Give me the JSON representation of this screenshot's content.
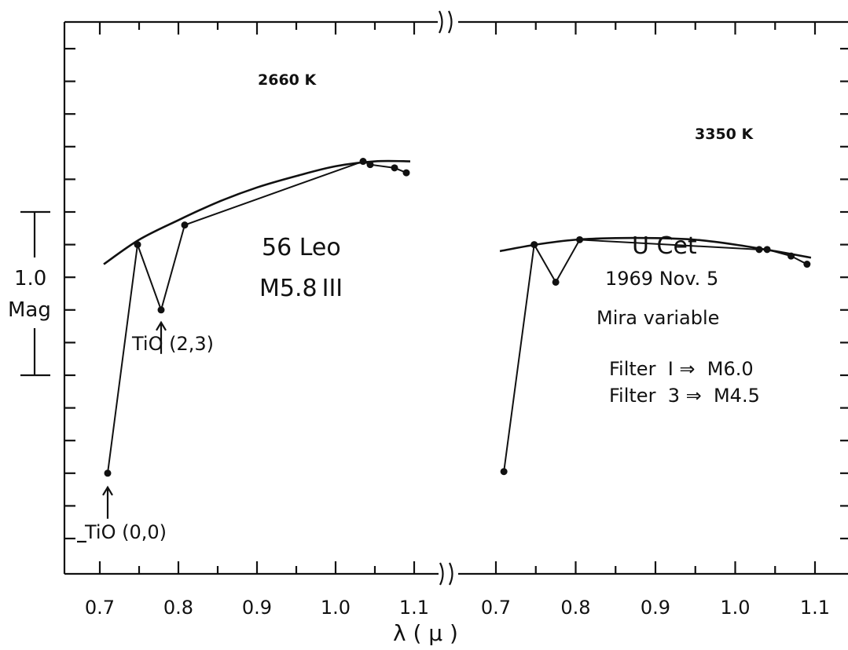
{
  "chart_data": [
    {
      "type": "line",
      "panel": "left",
      "x_tick_labels": [
        "0.7",
        "0.8",
        "0.9",
        "1.0",
        "1.1"
      ],
      "xlim": [
        0.655,
        1.115
      ],
      "y_unit": "mag",
      "ylim": [
        -0.6,
        3.4
      ],
      "series": [
        {
          "kind": "observed",
          "x": [
            0.71,
            0.748,
            0.778,
            0.808,
            1.035,
            1.044,
            1.075,
            1.09
          ],
          "y": [
            2.0,
            0.6,
            1.0,
            0.48,
            0.09,
            0.11,
            0.13,
            0.16
          ]
        },
        {
          "kind": "blackbody",
          "x": [
            0.705,
            0.75,
            0.8,
            0.85,
            0.9,
            0.95,
            1.0,
            1.05,
            1.095
          ],
          "y": [
            0.72,
            0.57,
            0.45,
            0.34,
            0.25,
            0.18,
            0.12,
            0.09,
            0.09
          ]
        }
      ],
      "annotations": {
        "blackbody_label": "2660 K",
        "star_name": "56 Leo",
        "spectral_type": "M5.8",
        "luminosity_class": "III",
        "arrow_lower": "TiO (0,0)",
        "arrow_upper": "TiO (2,3)"
      }
    },
    {
      "type": "line",
      "panel": "right",
      "x_tick_labels": [
        "0.7",
        "0.8",
        "0.9",
        "1.0",
        "1.1"
      ],
      "xlim": [
        0.655,
        1.115
      ],
      "y_unit": "mag",
      "ylim": [
        -0.6,
        3.4
      ],
      "series": [
        {
          "kind": "observed",
          "x": [
            0.71,
            0.748,
            0.775,
            0.805,
            1.03,
            1.04,
            1.07,
            1.09
          ],
          "y": [
            1.99,
            0.6,
            0.83,
            0.57,
            0.63,
            0.63,
            0.67,
            0.72
          ]
        },
        {
          "kind": "blackbody",
          "x": [
            0.705,
            0.75,
            0.8,
            0.85,
            0.9,
            0.95,
            1.0,
            1.05,
            1.095
          ],
          "y": [
            0.64,
            0.6,
            0.57,
            0.56,
            0.56,
            0.57,
            0.6,
            0.64,
            0.68
          ]
        }
      ],
      "annotations": {
        "blackbody_label": "3350 K",
        "star_name": "U Cet",
        "date": "1969 Nov. 5",
        "star_class": "Mira variable",
        "filter1": "Filter  I ⇒  M6.0",
        "filter3": "Filter  3 ⇒  M4.5"
      }
    }
  ],
  "x_axis_title": "λ ( μ )",
  "scale_bar": {
    "value_label": "1.0",
    "unit_label": "Mag",
    "magnitude": 1.0
  }
}
